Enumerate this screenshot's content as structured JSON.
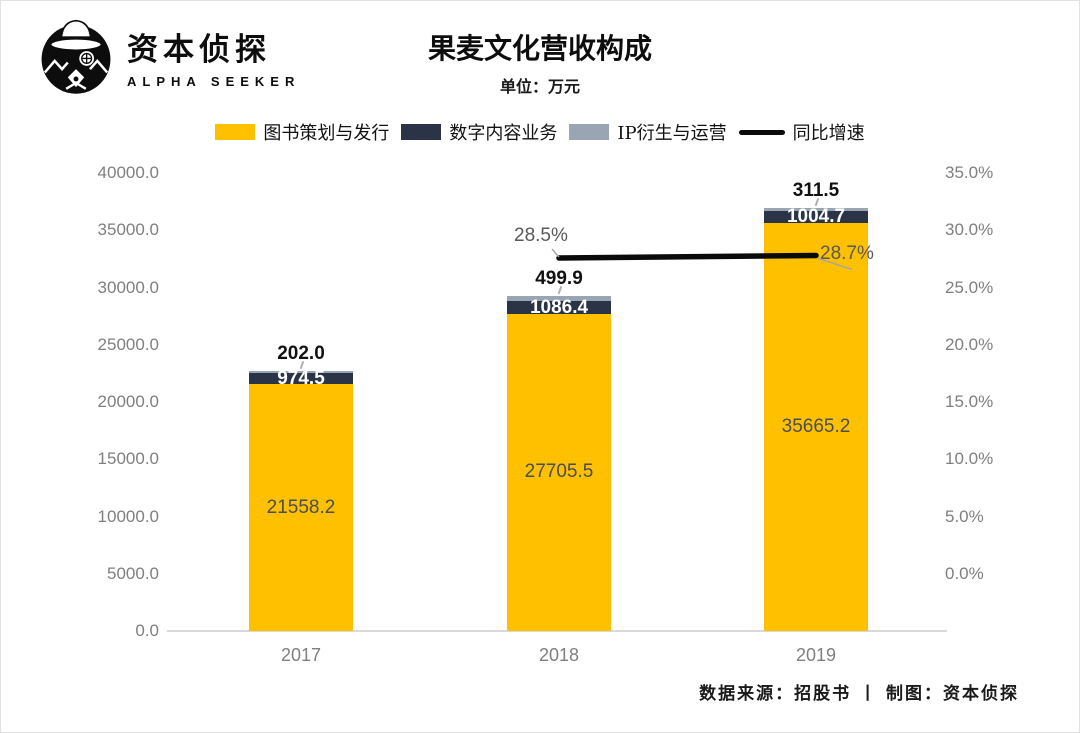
{
  "logo": {
    "name_cn": "资本侦探",
    "name_en": "ALPHA SEEKER"
  },
  "header": {
    "title": "果麦文化营收构成",
    "subtitle": "单位：万元"
  },
  "legend": [
    {
      "label": "图书策划与发行",
      "color": "#FFC000",
      "type": "box"
    },
    {
      "label": "数字内容业务",
      "color": "#2B3447",
      "type": "box"
    },
    {
      "label": "IP衍生与运营",
      "color": "#9AA5B4",
      "type": "box"
    },
    {
      "label": "同比增速",
      "color": "#0a0a0a",
      "type": "line"
    }
  ],
  "source": "数据来源：招股书 丨 制图：资本侦探",
  "chart_data": {
    "type": "bar+line",
    "stacked": true,
    "categories": [
      "2017",
      "2018",
      "2019"
    ],
    "series": [
      {
        "name": "图书策划与发行",
        "color": "#FFC000",
        "values": [
          21558.2,
          27705.5,
          35665.2
        ]
      },
      {
        "name": "数字内容业务",
        "color": "#2B3447",
        "values": [
          974.5,
          1086.4,
          1004.7
        ]
      },
      {
        "name": "IP衍生与运营",
        "color": "#9AA5B4",
        "values": [
          202.0,
          499.9,
          311.5
        ]
      }
    ],
    "line_series": {
      "name": "同比增速",
      "color": "#0a0a0a",
      "values": [
        null,
        28.5,
        28.7
      ]
    },
    "left_axis": {
      "min": 0,
      "max": 40000,
      "step": 5000,
      "ticks": [
        "40000.0",
        "35000.0",
        "30000.0",
        "25000.0",
        "20000.0",
        "15000.0",
        "10000.0",
        "5000.0",
        "0.0"
      ]
    },
    "right_axis": {
      "min": 0,
      "max": 35,
      "step": 5,
      "ticks": [
        "35.0%",
        "30.0%",
        "25.0%",
        "20.0%",
        "15.0%",
        "10.0%",
        "5.0%",
        "0.0%"
      ]
    },
    "grid": false,
    "legend_position": "top",
    "title": "果麦文化营收构成",
    "ylabel_left": "万元",
    "ylabel_right": "%"
  }
}
